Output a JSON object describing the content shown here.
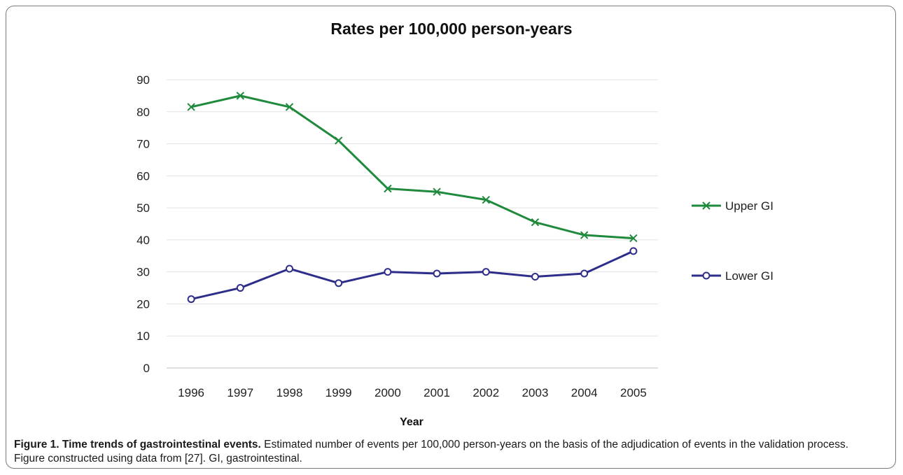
{
  "chart_data": {
    "type": "line",
    "title": "Rates per 100,000 person-years",
    "xlabel": "Year",
    "ylabel": "",
    "ylim": [
      0,
      90
    ],
    "yticks": [
      0,
      10,
      20,
      30,
      40,
      50,
      60,
      70,
      80,
      90
    ],
    "categories": [
      "1996",
      "1997",
      "1998",
      "1999",
      "2000",
      "2001",
      "2002",
      "2003",
      "2004",
      "2005"
    ],
    "grid": true,
    "legend": "right",
    "series": [
      {
        "name": "Upper GI",
        "color": "#1f8a3c",
        "marker": "x",
        "values": [
          81.5,
          85,
          81.5,
          71,
          56,
          55,
          52.5,
          45.5,
          41.5,
          40.5
        ]
      },
      {
        "name": "Lower GI",
        "color": "#2e2e8a",
        "marker": "circle",
        "values": [
          21.5,
          25,
          31,
          26.5,
          30,
          29.5,
          30,
          28.5,
          29.5,
          36.5
        ]
      }
    ]
  },
  "caption": {
    "title": "Figure 1. Time trends of gastrointestinal events.",
    "text": " Estimated number of events per 100,000 person-years on the basis of the adjudication of events in the validation process. Figure constructed using data from [27]. GI, gastrointestinal."
  }
}
